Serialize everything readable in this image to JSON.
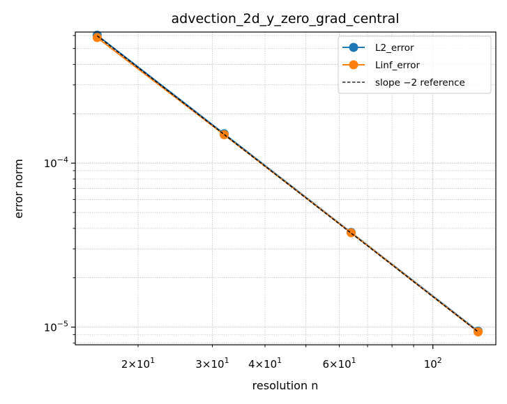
{
  "chart_data": {
    "type": "line",
    "title": "advection_2d_y_zero_grad_central",
    "xlabel": "resolution n",
    "ylabel": "error norm",
    "xscale": "log",
    "yscale": "log",
    "xlim": [
      14.2,
      141
    ],
    "ylim": [
      7.8e-06,
      0.00063
    ],
    "grid": true,
    "legend_position": "top-right",
    "x_ticks": [
      {
        "value": 20,
        "mantissa": "2",
        "base": "10",
        "exp": "1"
      },
      {
        "value": 30,
        "mantissa": "3",
        "base": "10",
        "exp": "1"
      },
      {
        "value": 40,
        "mantissa": "4",
        "base": "10",
        "exp": "1"
      },
      {
        "value": 60,
        "mantissa": "6",
        "base": "10",
        "exp": "1"
      },
      {
        "value": 100,
        "mantissa": "",
        "base": "10",
        "exp": "2"
      }
    ],
    "y_ticks": [
      {
        "value": 0.0001,
        "base": "10",
        "exp": "−4"
      },
      {
        "value": 1e-05,
        "base": "10",
        "exp": "−5"
      }
    ],
    "series": [
      {
        "name": "L2_error",
        "color": "#1f77b4",
        "marker": "circle",
        "line": "solid",
        "x": [
          16,
          32,
          64,
          128
        ],
        "y": [
          0.000603,
          0.000151,
          3.78e-05,
          9.45e-06
        ]
      },
      {
        "name": "Linf_error",
        "color": "#ff7f0e",
        "marker": "circle",
        "line": "solid",
        "x": [
          16,
          32,
          64,
          128
        ],
        "y": [
          0.000583,
          0.000149,
          3.76e-05,
          9.35e-06
        ]
      },
      {
        "name": "slope −2 reference",
        "color": "#000000",
        "marker": "none",
        "line": "dashed",
        "x": [
          16,
          32,
          64,
          128
        ],
        "y": [
          0.000598,
          0.0001495,
          3.74e-05,
          9.35e-06
        ]
      }
    ]
  }
}
